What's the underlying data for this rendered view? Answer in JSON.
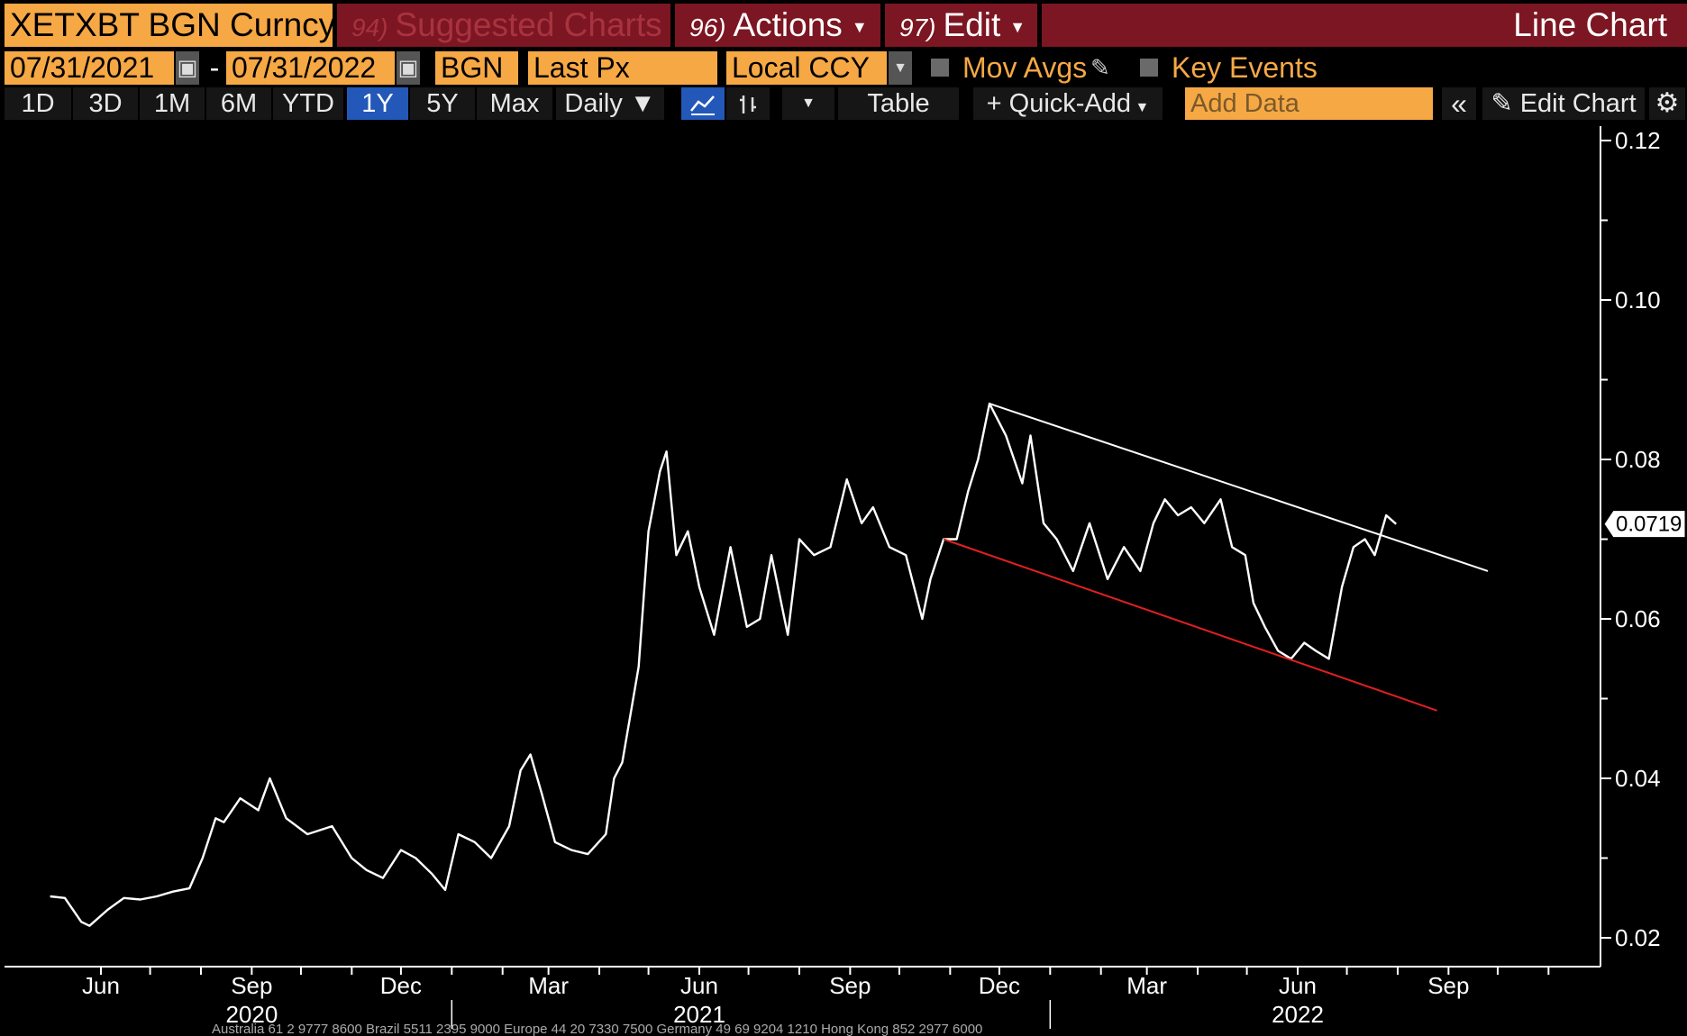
{
  "toolbar": {
    "ticker": "XETXBT BGN Curncy",
    "suggested_num": "94)",
    "suggested_label": "Suggested Charts",
    "actions_num": "96)",
    "actions_label": "Actions",
    "edit_num": "97)",
    "edit_label": "Edit",
    "chart_type": "Line Chart"
  },
  "params": {
    "start_date": "07/31/2021",
    "separator": "-",
    "end_date": "07/31/2022",
    "source": "BGN",
    "field": "Last Px",
    "currency": "Local CCY",
    "mov_avgs": "Mov Avgs",
    "key_events": "Key Events"
  },
  "periods": [
    "1D",
    "3D",
    "1M",
    "6M",
    "YTD",
    "1Y",
    "5Y",
    "Max"
  ],
  "active_period": "1Y",
  "frequency": "Daily",
  "table_label": "Table",
  "quick_add_label": "+ Quick-Add",
  "add_data_placeholder": "Add Data",
  "edit_chart_label": "Edit Chart",
  "footer_text": "Australia 61 2 9777 8600 Brazil 5511 2395 9000 Europe 44 20 7330 7500 Germany 49 69 9204 1210 Hong Kong 852 2977 6000",
  "colors": {
    "background": "#000000",
    "price_line": "#ffffff",
    "resistance_line": "#ffffff",
    "support_line": "#e02020",
    "accent_orange": "#f6a845",
    "header_red": "#7c1622",
    "active_blue": "#2358b9"
  },
  "chart_data": {
    "type": "line",
    "title": "",
    "xlabel": "",
    "ylabel": "",
    "series": [
      {
        "x": [
          "2020-05-01",
          "2020-05-10",
          "2020-05-20",
          "2020-05-25",
          "2020-06-05",
          "2020-06-15",
          "2020-06-25",
          "2020-07-05",
          "2020-07-15",
          "2020-07-25",
          "2020-08-02",
          "2020-08-10",
          "2020-08-15",
          "2020-08-25",
          "2020-09-05",
          "2020-09-12",
          "2020-09-22",
          "2020-10-05",
          "2020-10-20",
          "2020-11-01",
          "2020-11-10",
          "2020-11-20",
          "2020-12-01",
          "2020-12-10",
          "2020-12-20",
          "2020-12-28",
          "2021-01-05",
          "2021-01-15",
          "2021-01-25",
          "2021-02-05",
          "2021-02-12",
          "2021-02-18",
          "2021-02-25",
          "2021-03-05",
          "2021-03-15",
          "2021-03-25",
          "2021-04-05",
          "2021-04-10",
          "2021-04-15",
          "2021-04-25",
          "2021-05-01",
          "2021-05-08",
          "2021-05-12",
          "2021-05-18",
          "2021-05-25",
          "2021-06-01",
          "2021-06-10",
          "2021-06-20",
          "2021-06-30",
          "2021-07-08",
          "2021-07-15",
          "2021-07-25",
          "2021-08-01",
          "2021-08-10",
          "2021-08-20",
          "2021-08-30",
          "2021-09-08",
          "2021-09-15",
          "2021-09-25",
          "2021-10-05",
          "2021-10-15",
          "2021-10-20",
          "2021-10-28",
          "2021-11-05",
          "2021-11-12",
          "2021-11-18",
          "2021-11-25",
          "2021-12-05",
          "2021-12-15",
          "2021-12-20",
          "2021-12-28",
          "2022-01-05",
          "2022-01-15",
          "2022-01-25",
          "2022-02-05",
          "2022-02-15",
          "2022-02-25",
          "2022-03-05",
          "2022-03-12",
          "2022-03-20",
          "2022-03-28",
          "2022-04-05",
          "2022-04-15",
          "2022-04-22",
          "2022-04-30",
          "2022-05-05",
          "2022-05-12",
          "2022-05-20",
          "2022-05-28",
          "2022-06-05",
          "2022-06-12",
          "2022-06-20",
          "2022-06-28",
          "2022-07-05",
          "2022-07-12",
          "2022-07-18",
          "2022-07-25",
          "2022-07-31"
        ],
        "values": [
          0.0252,
          0.025,
          0.022,
          0.0215,
          0.0235,
          0.025,
          0.0248,
          0.0252,
          0.0258,
          0.0262,
          0.03,
          0.035,
          0.0345,
          0.0375,
          0.036,
          0.04,
          0.035,
          0.033,
          0.034,
          0.03,
          0.0285,
          0.0275,
          0.031,
          0.03,
          0.028,
          0.026,
          0.033,
          0.032,
          0.03,
          0.034,
          0.041,
          0.043,
          0.038,
          0.032,
          0.031,
          0.0305,
          0.033,
          0.04,
          0.042,
          0.054,
          0.071,
          0.0785,
          0.081,
          0.068,
          0.071,
          0.064,
          0.058,
          0.069,
          0.059,
          0.06,
          0.068,
          0.058,
          0.07,
          0.068,
          0.069,
          0.0775,
          0.072,
          0.074,
          0.069,
          0.068,
          0.06,
          0.065,
          0.07,
          0.07,
          0.076,
          0.08,
          0.087,
          0.083,
          0.077,
          0.083,
          0.072,
          0.07,
          0.066,
          0.072,
          0.065,
          0.069,
          0.066,
          0.072,
          0.075,
          0.073,
          0.074,
          0.072,
          0.075,
          0.069,
          0.068,
          0.062,
          0.059,
          0.056,
          0.055,
          0.057,
          0.056,
          0.055,
          0.064,
          0.069,
          0.07,
          0.068,
          0.073,
          0.0719
        ]
      }
    ],
    "trendlines": [
      {
        "name": "resistance",
        "color": "#ffffff",
        "x": [
          "2021-11-25",
          "2022-09-25"
        ],
        "y": [
          0.087,
          0.066
        ]
      },
      {
        "name": "support",
        "color": "#e02020",
        "x": [
          "2021-10-28",
          "2022-08-25"
        ],
        "y": [
          0.07,
          0.0485
        ]
      }
    ],
    "last_value_label": "0.0719",
    "y_ticks": [
      0.02,
      0.04,
      0.06,
      0.08,
      0.1,
      0.12
    ],
    "y_tick_labels": [
      "0.02",
      "0.04",
      "0.06",
      "0.08",
      "0.10",
      "0.12"
    ],
    "ylim": [
      0.013,
      0.123
    ],
    "xlim": [
      "2020-04-15",
      "2022-11-27"
    ],
    "x_ticks": [
      {
        "date": "2020-06-01",
        "label": "Jun"
      },
      {
        "date": "2020-09-01",
        "label": "Sep"
      },
      {
        "date": "2020-12-01",
        "label": "Dec"
      },
      {
        "date": "2021-03-01",
        "label": "Mar"
      },
      {
        "date": "2021-06-01",
        "label": "Jun"
      },
      {
        "date": "2021-09-01",
        "label": "Sep"
      },
      {
        "date": "2021-12-01",
        "label": "Dec"
      },
      {
        "date": "2022-03-01",
        "label": "Mar"
      },
      {
        "date": "2022-06-01",
        "label": "Jun"
      },
      {
        "date": "2022-09-01",
        "label": "Sep"
      }
    ],
    "year_labels": [
      {
        "date": "2020-09-01",
        "label": "2020"
      },
      {
        "date": "2021-06-01",
        "label": "2021"
      },
      {
        "date": "2022-06-01",
        "label": "2022"
      }
    ],
    "year_dividers": [
      "2021-01-01",
      "2022-01-01"
    ],
    "y_axis_position": "right",
    "legend": "none",
    "grid": false
  }
}
